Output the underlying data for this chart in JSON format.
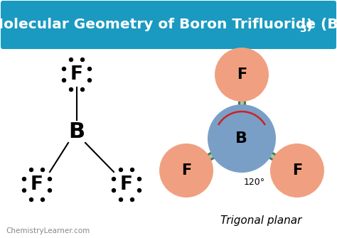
{
  "bg_color": "#ffffff",
  "header_bg": "#1a9ac0",
  "header_text_color": "#ffffff",
  "boron_color": "#7a9fc7",
  "fluorine_color": "#f0a080",
  "bond_color": "#4a7a5a",
  "bond_highlight": "#a8c8a8",
  "angle_color": "#cc2222",
  "angle_text": "120°",
  "trigonal_label": "Trigonal planar",
  "watermark": "ChemistryLearner.com",
  "header_title": "Molecular Geometry of Boron Trifluoride (BF",
  "header_sub": "3",
  "header_close": ")"
}
